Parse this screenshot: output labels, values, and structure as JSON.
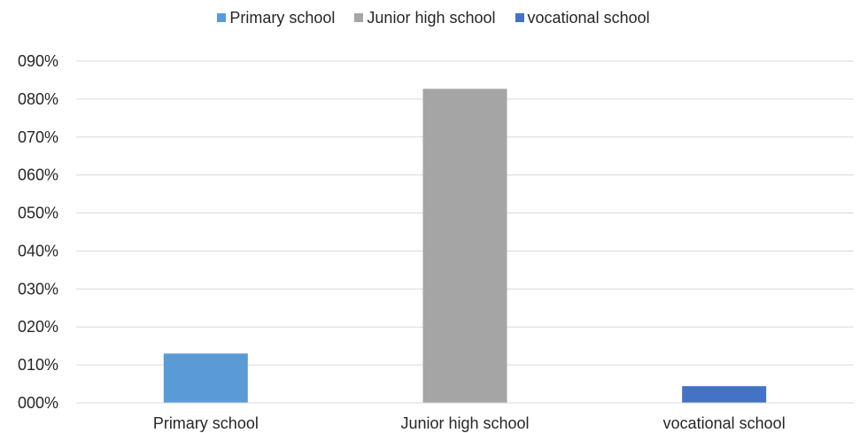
{
  "chart_data": {
    "type": "bar",
    "categories": [
      "Primary school",
      "Junior high school",
      "vocational school"
    ],
    "values": [
      0.13,
      0.827,
      0.044
    ],
    "colors": [
      "#5b9bd5",
      "#a5a5a5",
      "#4472c4"
    ],
    "ylim": [
      0,
      0.9
    ],
    "yticks": [
      0,
      0.1,
      0.2,
      0.3,
      0.4,
      0.5,
      0.6,
      0.7,
      0.8,
      0.9
    ],
    "ytick_labels": [
      "000%",
      "010%",
      "020%",
      "030%",
      "040%",
      "050%",
      "060%",
      "070%",
      "080%",
      "090%"
    ],
    "legend": {
      "position": "top",
      "entries": [
        "Primary school",
        "Junior high school",
        "vocational school"
      ]
    },
    "grid": true
  }
}
